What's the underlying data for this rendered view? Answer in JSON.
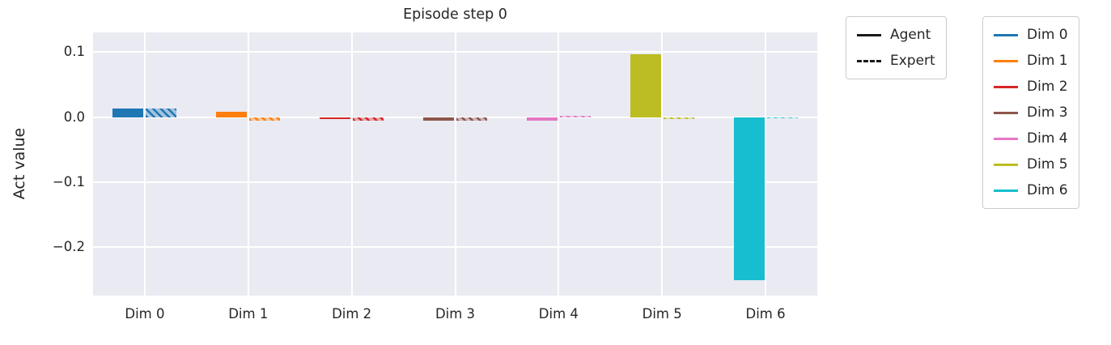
{
  "chart_data": {
    "type": "bar",
    "title": "Episode step 0",
    "xlabel": "",
    "ylabel": "Act value",
    "categories": [
      "Dim 0",
      "Dim 1",
      "Dim 2",
      "Dim 3",
      "Dim 4",
      "Dim 5",
      "Dim 6"
    ],
    "series": [
      {
        "name": "Agent",
        "style": "solid",
        "values": [
          0.013,
          0.008,
          -0.003,
          -0.005,
          -0.006,
          0.097,
          -0.25
        ]
      },
      {
        "name": "Expert",
        "style": "hatched",
        "values": [
          0.013,
          -0.005,
          -0.005,
          -0.006,
          0.001,
          -0.003,
          -0.002
        ]
      }
    ],
    "dim_colors": [
      "#1f77b4",
      "#ff7f0e",
      "#d62728",
      "#8c564b",
      "#e377c2",
      "#bcbd22",
      "#17becf"
    ],
    "yticks": [
      0.1,
      0.0,
      -0.1,
      -0.2
    ],
    "ytick_labels": [
      "0.1",
      "0.0",
      "−0.1",
      "−0.2"
    ],
    "ylim": [
      -0.274,
      0.13
    ],
    "grid": true,
    "plot_bg": "#eaeaf2",
    "grid_color": "#ffffff",
    "legend_line_color": "#1a1a1a"
  },
  "legends": {
    "style": [
      {
        "label": "Agent",
        "line": "solid"
      },
      {
        "label": "Expert",
        "line": "dashed"
      }
    ],
    "dims": [
      {
        "label": "Dim 0",
        "color": "#1f77b4"
      },
      {
        "label": "Dim 1",
        "color": "#ff7f0e"
      },
      {
        "label": "Dim 2",
        "color": "#d62728"
      },
      {
        "label": "Dim 3",
        "color": "#8c564b"
      },
      {
        "label": "Dim 4",
        "color": "#e377c2"
      },
      {
        "label": "Dim 5",
        "color": "#bcbd22"
      },
      {
        "label": "Dim 6",
        "color": "#17becf"
      }
    ]
  }
}
